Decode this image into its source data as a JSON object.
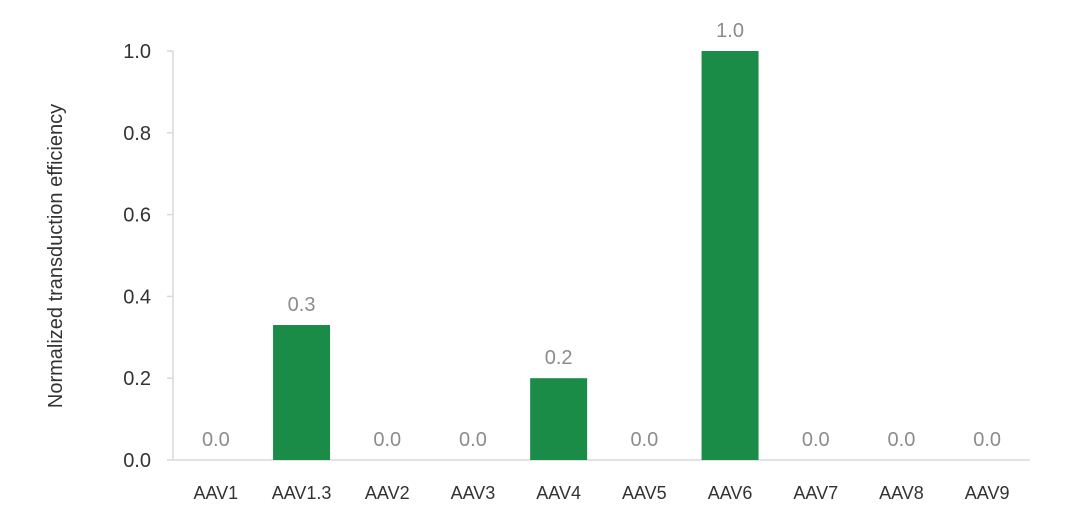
{
  "chart_data": {
    "type": "bar",
    "title": "",
    "xlabel": "",
    "ylabel": "Normalized transduction efficiency",
    "categories": [
      "AAV1",
      "AAV1.3",
      "AAV2",
      "AAV3",
      "AAV4",
      "AAV5",
      "AAV6",
      "AAV7",
      "AAV8",
      "AAV9"
    ],
    "values": [
      0.0,
      0.33,
      0.0,
      0.0,
      0.2,
      0.0,
      1.0,
      0.0,
      0.0,
      0.0
    ],
    "data_labels": [
      "0.0",
      "0.3",
      "0.0",
      "0.0",
      "0.2",
      "0.0",
      "1.0",
      "0.0",
      "0.0",
      "0.0"
    ],
    "ylim": [
      0,
      1.0
    ],
    "yticks": [
      0.0,
      0.2,
      0.4,
      0.6,
      0.8,
      1.0
    ],
    "ytick_labels": [
      "0.0",
      "0.2",
      "0.4",
      "0.6",
      "0.8",
      "1.0"
    ],
    "grid": false,
    "legend": "none",
    "colors": {
      "bar": "#1a8c47",
      "axis": "#d9d9d9",
      "data_label": "#8c8c8c",
      "text": "#333333"
    }
  }
}
